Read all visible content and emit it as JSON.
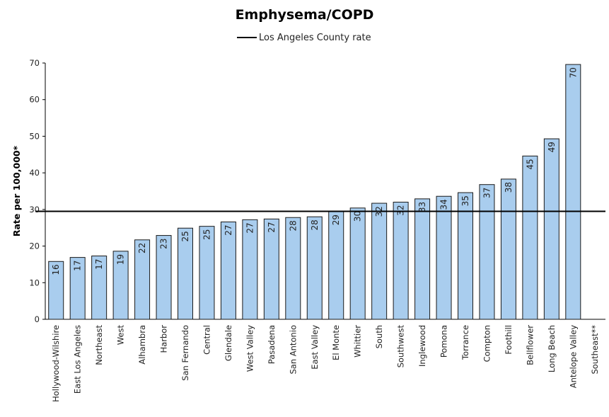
{
  "chart_data": {
    "type": "bar",
    "title": "Emphysema/COPD",
    "ylabel": "Rate per 100,000*",
    "xlabel": "",
    "ylim": [
      0,
      70
    ],
    "yticks": [
      0,
      10,
      20,
      30,
      40,
      50,
      60,
      70
    ],
    "categories": [
      "Hollywood-Wilshire",
      "East Los Angeles",
      "Northeast",
      "West",
      "Alhambra",
      "Harbor",
      "San Fernando",
      "Central",
      "Glendale",
      "West Valley",
      "Pasadena",
      "San Antonio",
      "East Valley",
      "El Monte",
      "Whittier",
      "South",
      "Southwest",
      "Inglewood",
      "Pomona",
      "Torrance",
      "Compton",
      "Foothill",
      "Bellflower",
      "Long Beach",
      "Antelope Valley",
      "Southeast**"
    ],
    "values": [
      15.8,
      16.9,
      17.3,
      18.6,
      21.7,
      22.9,
      24.9,
      25.4,
      26.6,
      27.2,
      27.4,
      27.8,
      28.0,
      29.4,
      30.4,
      31.7,
      32.0,
      32.9,
      33.6,
      34.6,
      36.8,
      38.3,
      44.6,
      49.3,
      69.6,
      null
    ],
    "data_labels": [
      "16",
      "17",
      "17",
      "19",
      "22",
      "23",
      "25",
      "25",
      "27",
      "27",
      "27",
      "28",
      "28",
      "29",
      "30",
      "32",
      "32",
      "33",
      "34",
      "35",
      "37",
      "38",
      "45",
      "49",
      "70",
      ""
    ],
    "reference_line": {
      "name": "Los Angeles County rate",
      "value": 29.5
    },
    "legend": {
      "position": "top-center",
      "entries": [
        "Los Angeles County rate"
      ]
    },
    "grid": false,
    "colors": {
      "bar_fill": "#a9cdee",
      "bar_stroke": "#1a1a1a",
      "reference_line": "#000000"
    }
  }
}
